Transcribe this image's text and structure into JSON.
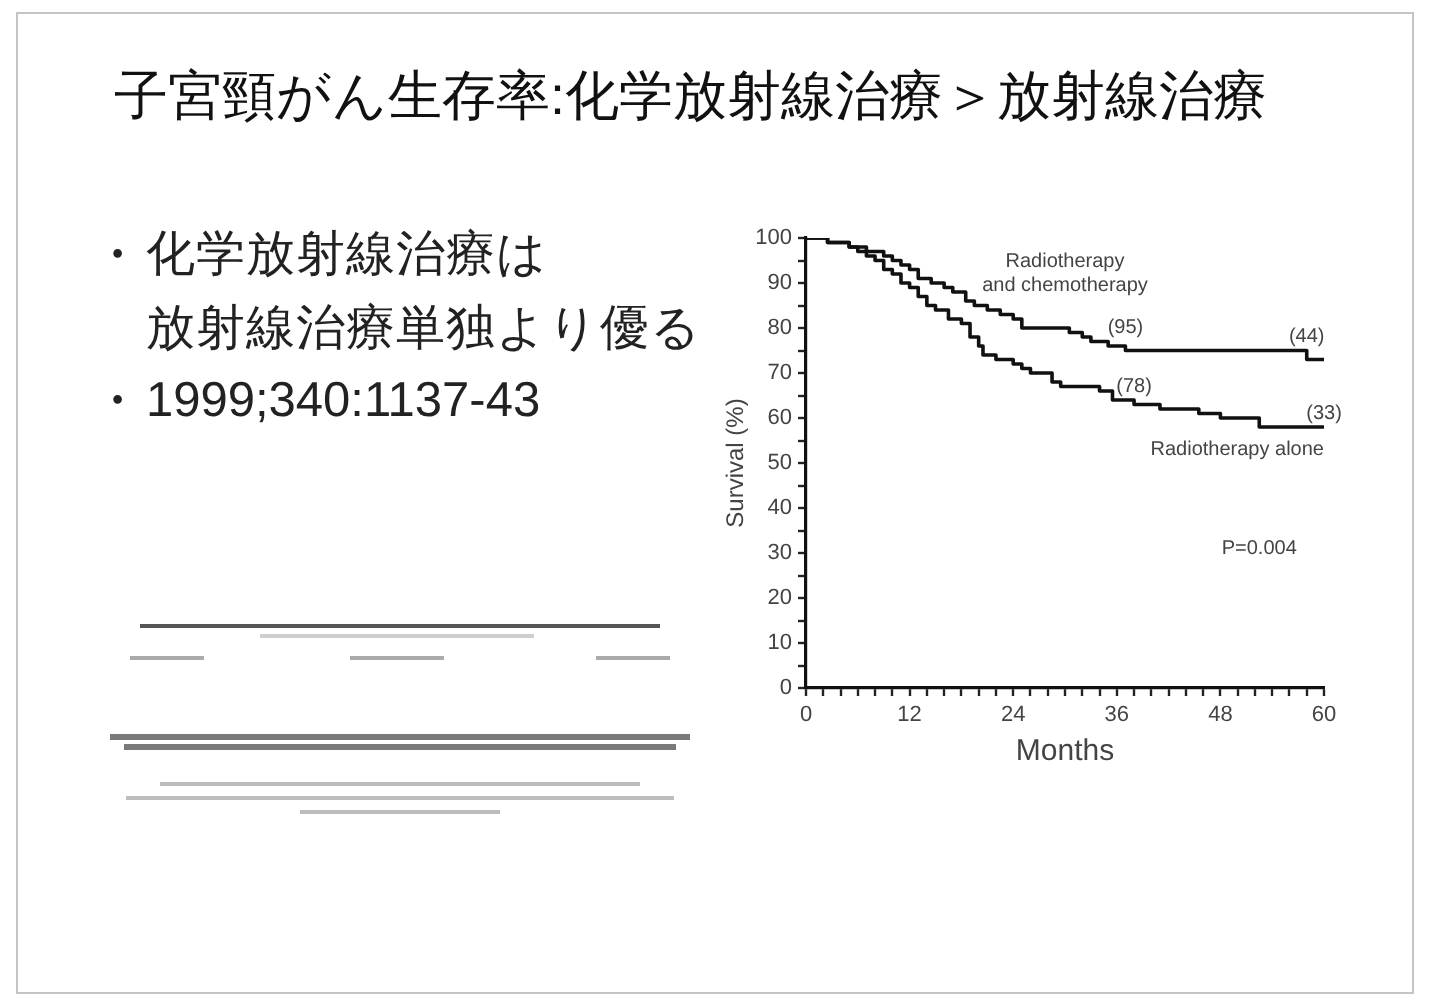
{
  "chart_data": [
    {
      "type": "other",
      "title": "子宮頸がん生存率:化学放射線治療＞放射線治療",
      "annotations": [
        "• 化学放射線治療は",
        "放射線治療単独より優る",
        "• 1999;340:1137-43"
      ]
    },
    {
      "type": "step",
      "xlabel": "Months",
      "ylabel": "Survival (%)",
      "xlim": [
        0,
        60
      ],
      "ylim": [
        0,
        100
      ],
      "xticks": [
        0,
        {
          "value": 2,
          "label": null
        },
        {
          "value": 4,
          "label": null
        },
        {
          "value": 6,
          "label": null
        },
        {
          "value": 8,
          "label": null
        },
        {
          "value": 10,
          "label": null
        },
        12,
        {
          "value": 14,
          "label": null
        },
        {
          "value": 16,
          "label": null
        },
        {
          "value": 18,
          "label": null
        },
        {
          "value": 20,
          "label": null
        },
        {
          "value": 22,
          "label": null
        },
        24,
        {
          "value": 26,
          "label": null
        },
        {
          "value": 28,
          "label": null
        },
        {
          "value": 30,
          "label": null
        },
        {
          "value": 32,
          "label": null
        },
        {
          "value": 34,
          "label": null
        },
        36,
        {
          "value": 38,
          "label": null
        },
        {
          "value": 40,
          "label": null
        },
        {
          "value": 42,
          "label": null
        },
        {
          "value": 44,
          "label": null
        },
        {
          "value": 46,
          "label": null
        },
        48,
        {
          "value": 50,
          "label": null
        },
        {
          "value": 52,
          "label": null
        },
        {
          "value": 54,
          "label": null
        },
        {
          "value": 56,
          "label": null
        },
        {
          "value": 58,
          "label": null
        },
        60
      ],
      "yticks": [
        0,
        {
          "value": 5,
          "label": null
        },
        10,
        {
          "value": 15,
          "label": null
        },
        20,
        {
          "value": 25,
          "label": null
        },
        30,
        {
          "value": 35,
          "label": null
        },
        40,
        {
          "value": 45,
          "label": null
        },
        50,
        {
          "value": 55,
          "label": null
        },
        60,
        {
          "value": 65,
          "label": null
        },
        70,
        {
          "value": 75,
          "label": null
        },
        80,
        {
          "value": 85,
          "label": null
        },
        90,
        {
          "value": 95,
          "label": null
        },
        100
      ],
      "series": [
        {
          "name": "Radiotherapy and chemotherapy",
          "color": "#111111",
          "x": [
            0,
            2.5,
            5,
            7,
            9,
            10,
            11,
            12,
            13,
            14.5,
            16,
            17,
            18.5,
            19.5,
            21,
            22.5,
            24,
            25,
            30.5,
            32,
            33,
            35,
            37,
            58,
            60
          ],
          "values": [
            100,
            99,
            98,
            97,
            96,
            95,
            94,
            93,
            91,
            90,
            89,
            88,
            86,
            85,
            84,
            83,
            82,
            80,
            79,
            78,
            77,
            76,
            75,
            73,
            73
          ]
        },
        {
          "name": "Radiotherapy alone",
          "color": "#111111",
          "x": [
            0,
            2.5,
            5,
            6,
            7,
            8,
            9,
            10,
            11,
            12,
            13,
            14,
            15,
            16.5,
            18,
            19,
            20,
            20.5,
            22,
            24,
            25,
            26,
            28.5,
            29.5,
            34,
            35.5,
            38,
            41,
            45.5,
            48,
            52.5,
            60
          ],
          "values": [
            100,
            99,
            98,
            97,
            96,
            95,
            93,
            92,
            90,
            89,
            87,
            85,
            84,
            82,
            81,
            78,
            76,
            74,
            73,
            72,
            71,
            70,
            68,
            67,
            66,
            64,
            63,
            62,
            61,
            60,
            58,
            58
          ]
        }
      ],
      "annotations": [
        {
          "text": "(95)",
          "x": 37,
          "y": 75
        },
        {
          "text": "(44)",
          "x": 58,
          "y": 73
        },
        {
          "text": "(78)",
          "x": 38,
          "y": 63
        },
        {
          "text": "(33)",
          "x": 60,
          "y": 58
        },
        "P=0.004"
      ]
    }
  ]
}
